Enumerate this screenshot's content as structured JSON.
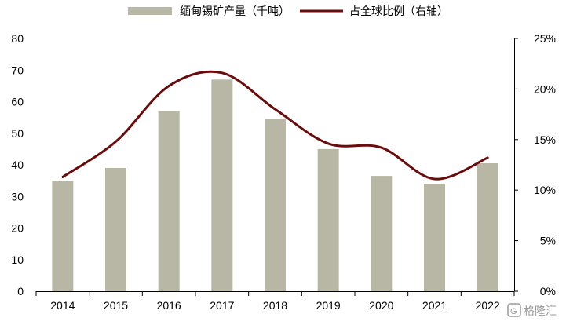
{
  "chart_data": {
    "type": "bar",
    "categories": [
      "2014",
      "2015",
      "2016",
      "2017",
      "2018",
      "2019",
      "2020",
      "2021",
      "2022"
    ],
    "series": [
      {
        "name": "缅甸锡矿产量（千吨）",
        "type": "bar",
        "axis": "left",
        "color": "#b8b7a6",
        "values": [
          35,
          39,
          57,
          67,
          54.5,
          45,
          36.5,
          34,
          40.5
        ]
      },
      {
        "name": "占全球比例（右轴）",
        "type": "line",
        "axis": "right",
        "color": "#6b0c0c",
        "values": [
          11.3,
          14.8,
          20.3,
          21.6,
          18.0,
          14.6,
          14.2,
          11.1,
          13.2
        ]
      }
    ],
    "y_left": {
      "ylim": [
        0,
        80
      ],
      "ticks": [
        "0",
        "10",
        "20",
        "30",
        "40",
        "50",
        "60",
        "70",
        "80"
      ]
    },
    "y_right": {
      "ylim": [
        0,
        25
      ],
      "ticks": [
        "0%",
        "5%",
        "10%",
        "15%",
        "20%",
        "25%"
      ]
    },
    "grid": false,
    "legend_position": "top"
  },
  "watermark": {
    "text": "格隆汇"
  }
}
